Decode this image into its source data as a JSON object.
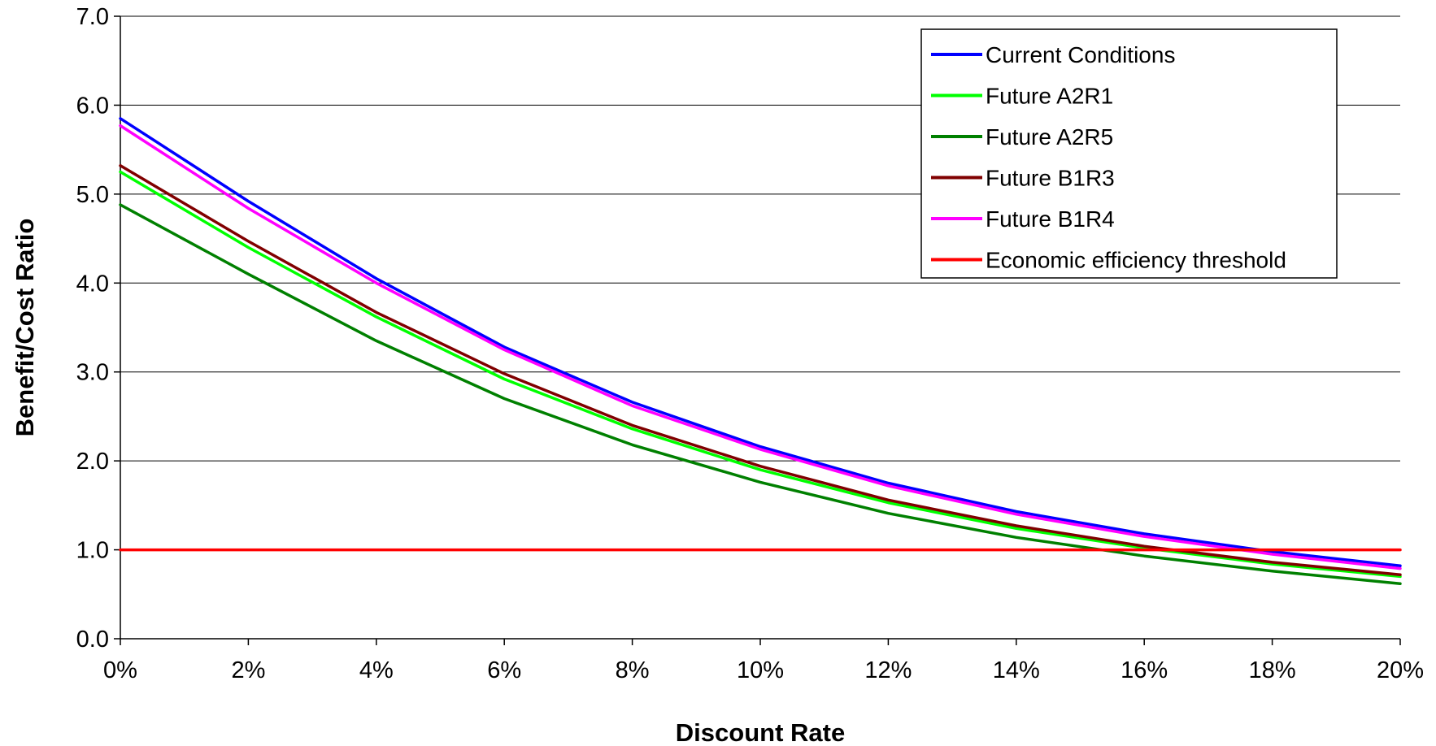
{
  "chart_data": {
    "type": "line",
    "title": "",
    "xlabel": "Discount Rate",
    "ylabel": "Benefit/Cost Ratio",
    "x": [
      0,
      2,
      4,
      6,
      8,
      10,
      12,
      14,
      16,
      18,
      20
    ],
    "x_tick_labels": [
      "0%",
      "2%",
      "4%",
      "6%",
      "8%",
      "10%",
      "12%",
      "14%",
      "16%",
      "18%",
      "20%"
    ],
    "xlim": [
      0,
      20
    ],
    "ylim": [
      0,
      7
    ],
    "y_ticks": [
      0,
      1,
      2,
      3,
      4,
      5,
      6,
      7
    ],
    "y_tick_labels": [
      "0.0",
      "1.0",
      "2.0",
      "3.0",
      "4.0",
      "5.0",
      "6.0",
      "7.0"
    ],
    "grid": "horizontal",
    "legend_position": "top-right",
    "series": [
      {
        "name": "Current Conditions",
        "color": "#0000ff",
        "values": [
          5.85,
          4.92,
          4.05,
          3.28,
          2.66,
          2.16,
          1.75,
          1.43,
          1.18,
          0.98,
          0.82
        ]
      },
      {
        "name": "Future A2R1",
        "color": "#00ff00",
        "values": [
          5.25,
          4.4,
          3.62,
          2.92,
          2.36,
          1.9,
          1.53,
          1.24,
          1.02,
          0.84,
          0.7
        ]
      },
      {
        "name": "Future A2R5",
        "color": "#008000",
        "values": [
          4.88,
          4.1,
          3.35,
          2.7,
          2.18,
          1.76,
          1.41,
          1.14,
          0.93,
          0.76,
          0.62
        ]
      },
      {
        "name": "Future B1R3",
        "color": "#800000",
        "values": [
          5.32,
          4.47,
          3.67,
          2.98,
          2.4,
          1.94,
          1.56,
          1.27,
          1.04,
          0.86,
          0.72
        ]
      },
      {
        "name": "Future B1R4",
        "color": "#ff00ff",
        "values": [
          5.77,
          4.84,
          4.0,
          3.25,
          2.62,
          2.13,
          1.72,
          1.4,
          1.15,
          0.95,
          0.79
        ]
      },
      {
        "name": "Economic efficiency threshold",
        "color": "#ff0000",
        "values": [
          1.0,
          1.0,
          1.0,
          1.0,
          1.0,
          1.0,
          1.0,
          1.0,
          1.0,
          1.0,
          1.0
        ]
      }
    ]
  }
}
